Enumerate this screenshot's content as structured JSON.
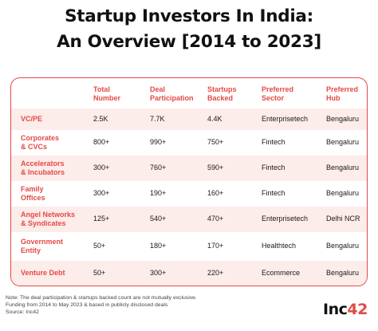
{
  "title": {
    "line1": "Startup Investors In India:",
    "line2": "An Overview [2014 to 2023]"
  },
  "table": {
    "headers": [
      "Total\nNumber",
      "Deal\nParticipation",
      "Startups\nBacked",
      "Preferred\nSector",
      "Preferred\nHub"
    ],
    "rows": [
      {
        "name": "VC/PE",
        "total": "2.5K",
        "deals": "7.7K",
        "startups": "4.4K",
        "sector": "Enterprisetech",
        "hub": "Bengaluru"
      },
      {
        "name": "Corporates\n& CVCs",
        "total": "800+",
        "deals": "990+",
        "startups": "750+",
        "sector": "Fintech",
        "hub": "Bengaluru"
      },
      {
        "name": "Accelerators\n& Incubators",
        "total": "300+",
        "deals": "760+",
        "startups": "590+",
        "sector": "Fintech",
        "hub": "Bengaluru"
      },
      {
        "name": "Family\nOffices",
        "total": "300+",
        "deals": "190+",
        "startups": "160+",
        "sector": "Fintech",
        "hub": "Bengaluru"
      },
      {
        "name": "Angel Networks\n& Syndicates",
        "total": "125+",
        "deals": "540+",
        "startups": "470+",
        "sector": "Enterprisetech",
        "hub": "Delhi NCR"
      },
      {
        "name": "Government\nEntity",
        "total": "50+",
        "deals": "180+",
        "startups": "170+",
        "sector": "Healthtech",
        "hub": "Bengaluru"
      },
      {
        "name": "Venture Debt",
        "total": "50+",
        "deals": "300+",
        "startups": "220+",
        "sector": "Ecommerce",
        "hub": "Bengaluru"
      }
    ]
  },
  "notes": {
    "line1": "Note: The deal participation & startups backed count are not mutually exclusive.",
    "line2": "Funding from 2014 to May 2023 & based in publicly disclosed deals",
    "line3": "Source: Inc42"
  },
  "logo": {
    "main": "Inc",
    "accent": "42"
  },
  "colors": {
    "accent": "#e34a45",
    "row_shade": "#fcecea",
    "text": "#111111"
  }
}
